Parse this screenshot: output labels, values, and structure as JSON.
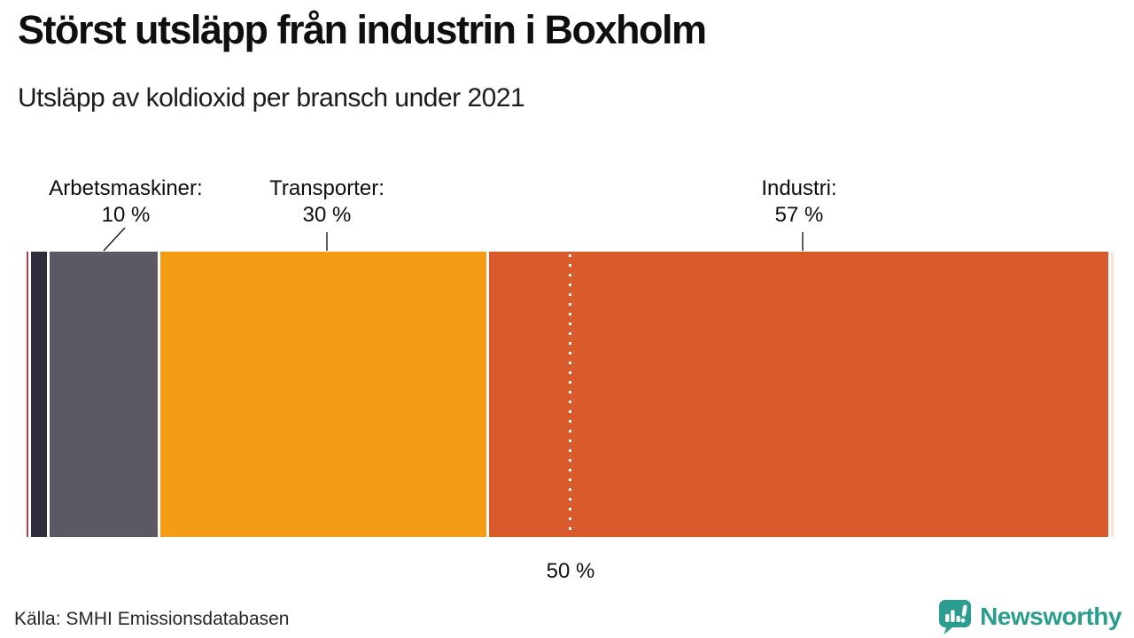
{
  "header": {
    "title": "Störst utsläpp från industrin i Boxholm",
    "subtitle": "Utsläpp av koldioxid per bransch under 2021"
  },
  "chart_data": {
    "type": "bar",
    "variant": "horizontal-stacked-single-bar",
    "unit": "%",
    "xlim": [
      0,
      100
    ],
    "segments": [
      {
        "name": null,
        "pct": 0.2,
        "color": "#a5454f"
      },
      {
        "name": null,
        "pct": 1.4,
        "color": "#2f2d3b"
      },
      {
        "name": "Arbetsmaskiner",
        "pct": 10,
        "color": "#5a5964"
      },
      {
        "name": "Transporter",
        "pct": 30,
        "color": "#f49c13"
      },
      {
        "name": "Industri",
        "pct": 57,
        "color": "#d95b2c"
      },
      {
        "name": null,
        "pct": 0.25,
        "color": "#fbe4d2"
      }
    ],
    "callouts": [
      {
        "label": "Arbetsmaskiner:",
        "value": "10 %"
      },
      {
        "label": "Transporter:",
        "value": "30 %"
      },
      {
        "label": "Industri:",
        "value": "57 %"
      }
    ],
    "reference_line": {
      "value": 50,
      "label": "50 %"
    }
  },
  "footer": {
    "source": "Källa: SMHI Emissionsdatabasen",
    "logo_text": "Newsworthy"
  },
  "colors": {
    "accent_teal": "#2a9d8f",
    "background": "#ffffff"
  }
}
